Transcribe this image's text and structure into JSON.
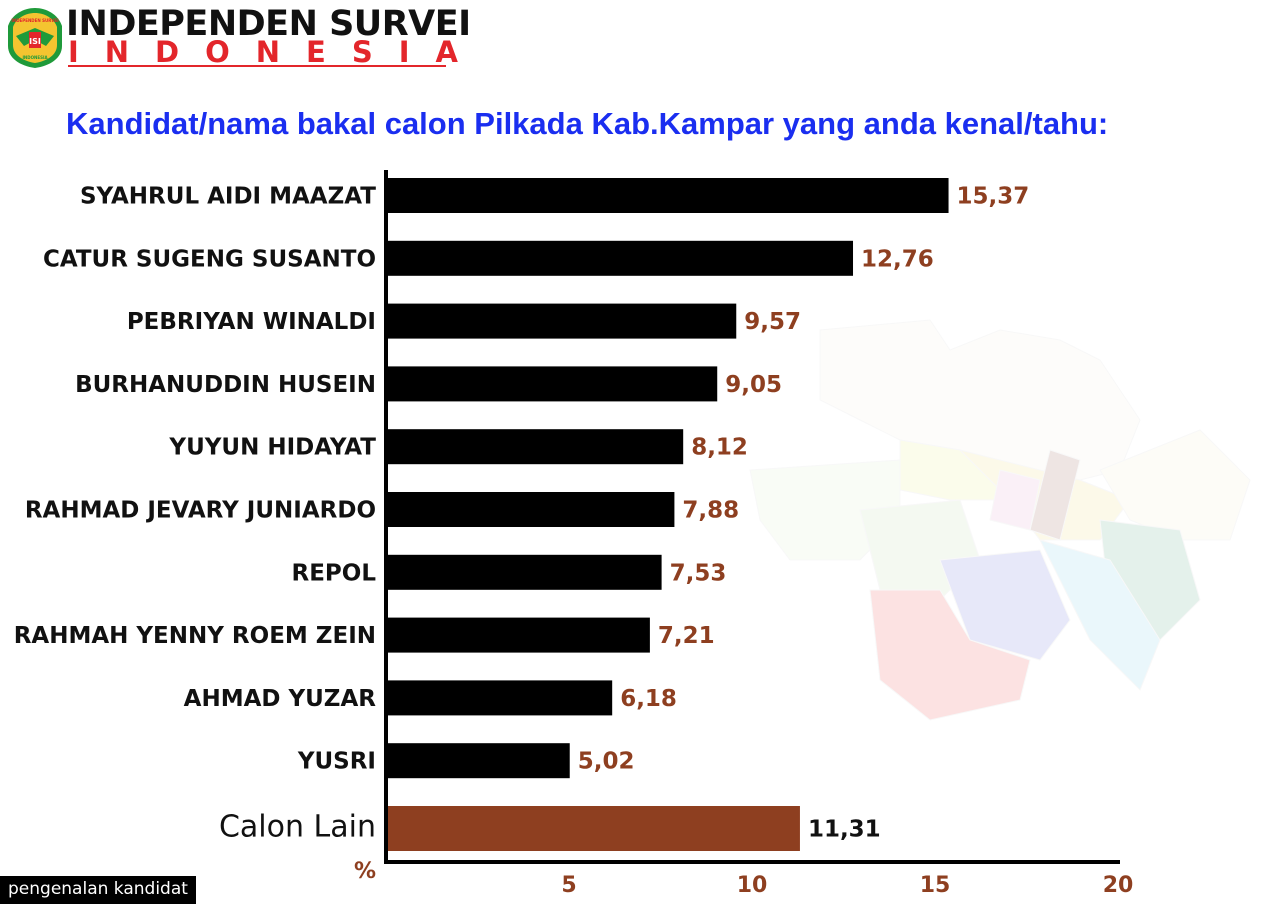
{
  "header": {
    "logo_lines": [
      "INDEPENDEN SURVEI",
      "ISI",
      "INDONESIA"
    ],
    "brand_line1": "INDEPENDEN SURVEI",
    "brand_line2": "INDONESIA"
  },
  "footer_tag": "pengenalan kandidat",
  "colors": {
    "title": "#1a2ef0",
    "bar": "#000000",
    "highlight_bar": "#8e3f20",
    "value_label": "#8e3f20",
    "brand_red": "#e3262b",
    "logo_green": "#1f9a3a"
  },
  "chart_data": {
    "type": "bar",
    "orientation": "horizontal",
    "title": "Kandidat/nama bakal calon Pilkada Kab.Kampar yang anda kenal/tahu:",
    "xlabel": "%",
    "ylabel": "",
    "xlim": [
      0,
      20
    ],
    "xticks": [
      5,
      10,
      15,
      20
    ],
    "categories": [
      "SYAHRUL AIDI MAAZAT",
      "CATUR SUGENG SUSANTO",
      "PEBRIYAN WINALDI",
      "BURHANUDDIN HUSEIN",
      "YUYUN HIDAYAT",
      "RAHMAD JEVARY JUNIARDO",
      "REPOL",
      "RAHMAH YENNY ROEM ZEIN",
      "AHMAD YUZAR",
      "YUSRI",
      "Calon Lain"
    ],
    "values": [
      15.37,
      12.76,
      9.57,
      9.05,
      8.12,
      7.88,
      7.53,
      7.21,
      6.18,
      5.02,
      11.31
    ],
    "value_labels": [
      "15,37",
      "12,76",
      "9,57",
      "9,05",
      "8,12",
      "7,88",
      "7,53",
      "7,21",
      "6,18",
      "5,02",
      "11,31"
    ],
    "highlight_category": "Calon Lain",
    "grid": false,
    "legend": "none",
    "background": "faded map of Kabupaten Kampar"
  }
}
